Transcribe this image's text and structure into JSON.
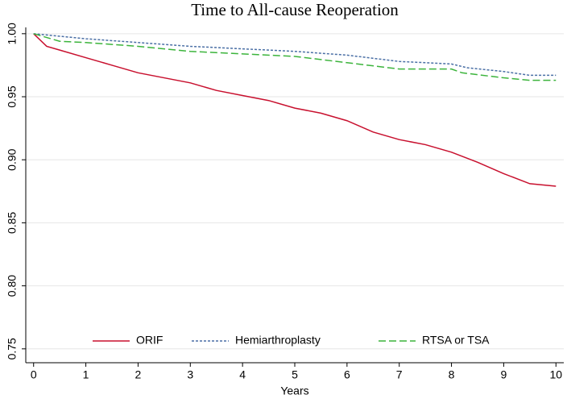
{
  "chart_data": {
    "type": "line",
    "title": "Time to All-cause Reoperation",
    "x_label": "Years",
    "xlim": [
      -0.15,
      10.15
    ],
    "xticks": [
      0,
      1,
      2,
      3,
      4,
      5,
      6,
      7,
      8,
      9,
      10
    ],
    "ylim": [
      0.739,
      1.005
    ],
    "yticks": [
      {
        "value": 0.75,
        "label": "0.75"
      },
      {
        "value": 0.8,
        "label": "0.80"
      },
      {
        "value": 0.85,
        "label": "0.85"
      },
      {
        "value": 0.9,
        "label": "0.90"
      },
      {
        "value": 0.95,
        "label": "0.95"
      },
      {
        "value": 1.0,
        "label": "1.00"
      }
    ],
    "grid": true,
    "legend": "bottom",
    "series": [
      {
        "name": "ORIF",
        "color": "#c8102e",
        "line_style": "solid",
        "x": [
          0,
          0.25,
          0.5,
          1,
          1.5,
          2,
          2.5,
          3,
          3.5,
          4,
          4.5,
          5,
          5.5,
          6,
          6.5,
          7,
          7.5,
          8,
          8.5,
          9,
          9.5,
          10
        ],
        "values": [
          1.0,
          0.99,
          0.987,
          0.981,
          0.975,
          0.969,
          0.965,
          0.961,
          0.955,
          0.951,
          0.947,
          0.941,
          0.937,
          0.931,
          0.922,
          0.916,
          0.912,
          0.906,
          0.898,
          0.889,
          0.881,
          0.879
        ]
      },
      {
        "name": "Hemiarthroplasty",
        "color": "#4a6fa5",
        "line_style": "dotted",
        "x": [
          0,
          1,
          2,
          3,
          4,
          5,
          6,
          7,
          8,
          8.3,
          9,
          9.5,
          10
        ],
        "values": [
          1.0,
          0.996,
          0.993,
          0.99,
          0.988,
          0.986,
          0.983,
          0.978,
          0.976,
          0.973,
          0.97,
          0.967,
          0.967
        ]
      },
      {
        "name": "RTSA or TSA",
        "color": "#3cb43c",
        "line_style": "dashed",
        "x": [
          0,
          0.5,
          1,
          2,
          3,
          4,
          5,
          6,
          7,
          8,
          8.2,
          9,
          9.5,
          10
        ],
        "values": [
          1.0,
          0.994,
          0.993,
          0.99,
          0.986,
          0.984,
          0.982,
          0.977,
          0.972,
          0.972,
          0.969,
          0.965,
          0.963,
          0.963
        ]
      }
    ]
  }
}
